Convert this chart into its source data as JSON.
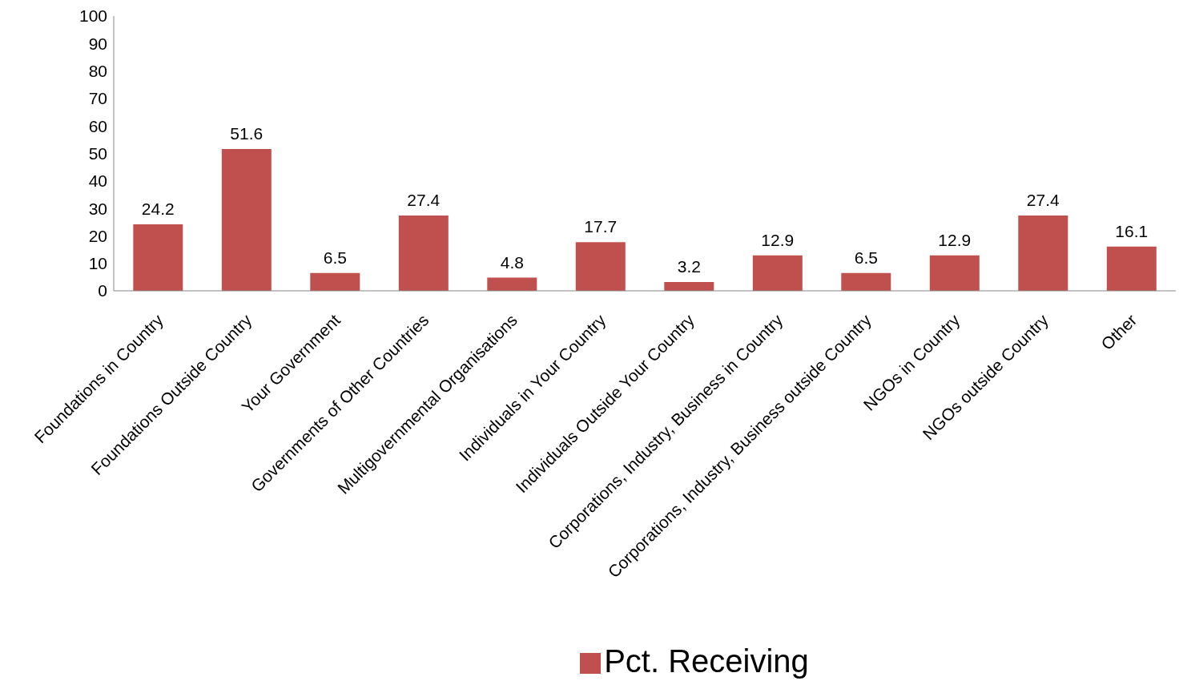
{
  "chart_data": {
    "type": "bar",
    "categories": [
      "Foundations in Country",
      "Foundations Outside Country",
      "Your Government",
      "Governments of Other Countries",
      "Multigovernmental Organisations",
      "Individuals in Your Country",
      "Individuals Outside Your Country",
      "Corporations, Industry, Business in Country",
      "Corporations, Industry, Business outside Country",
      "NGOs in Country",
      "NGOs outside Country",
      "Other"
    ],
    "series": [
      {
        "name": "Pct. Receiving",
        "color": "#c0504d",
        "values": [
          24.2,
          51.6,
          6.5,
          27.4,
          4.8,
          17.7,
          3.2,
          12.9,
          6.5,
          12.9,
          27.4,
          16.1
        ]
      }
    ],
    "ylim": [
      0,
      100
    ],
    "yticks": [
      0,
      10,
      20,
      30,
      40,
      50,
      60,
      70,
      80,
      90,
      100
    ],
    "data_labels": true,
    "grid": false,
    "legend": "bottom"
  }
}
